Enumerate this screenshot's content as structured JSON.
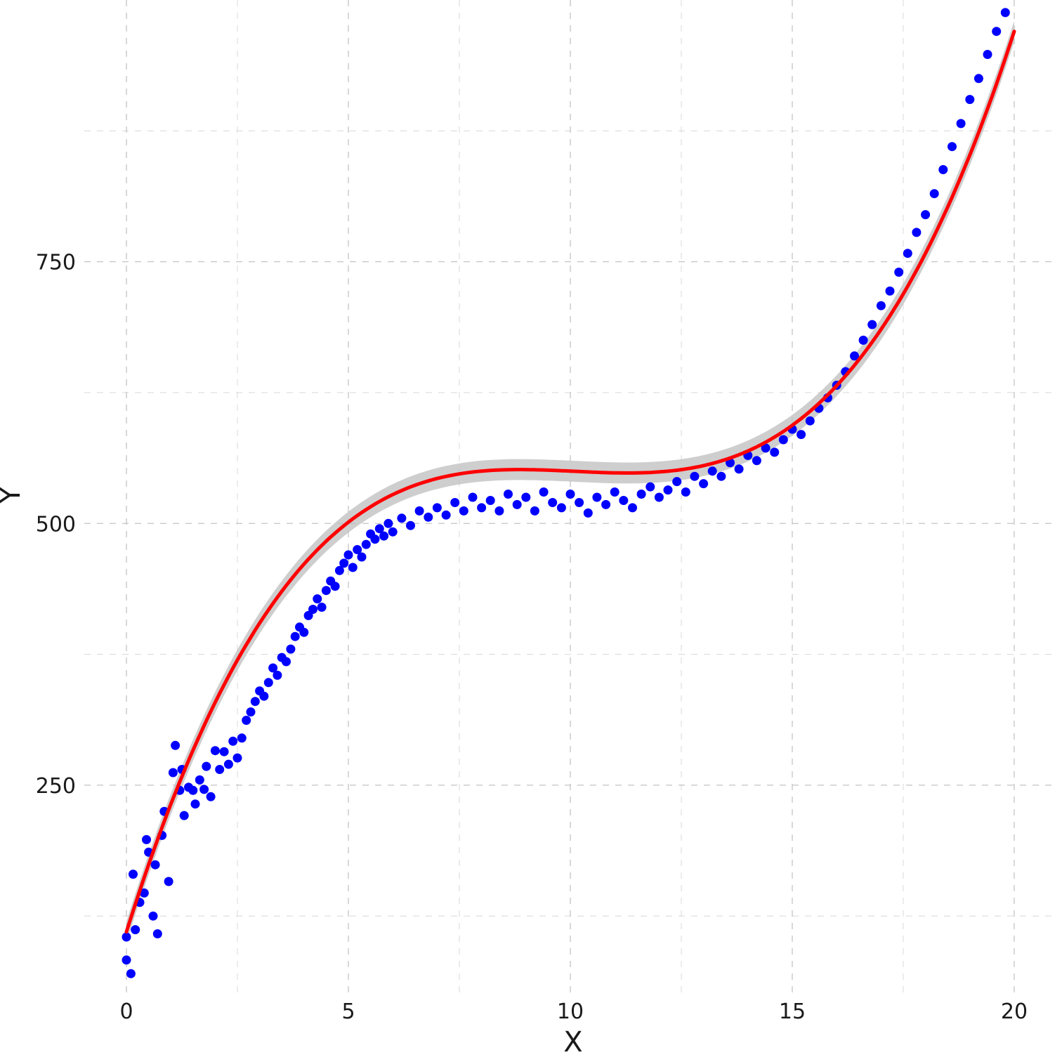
{
  "chart_data": {
    "type": "scatter",
    "title": "",
    "xlabel": "X",
    "ylabel": "Y",
    "xlim": [
      -0.95,
      20.95
    ],
    "ylim": [
      50,
      1000
    ],
    "x_ticks": [
      0,
      5,
      10,
      15,
      20
    ],
    "x_tick_labels": [
      "0",
      "5",
      "10",
      "15",
      "20"
    ],
    "y_ticks": [
      250,
      500,
      750
    ],
    "y_tick_labels": [
      "250",
      "500",
      "750"
    ],
    "x_minor": [
      2.5,
      7.5,
      12.5,
      17.5
    ],
    "y_minor": [
      125,
      375,
      625,
      875
    ],
    "grid": true,
    "legend": "none",
    "colors": {
      "points": "#0000ff",
      "fit_line": "#ff0000",
      "ribbon": "#bdbdbd"
    },
    "fit": {
      "type": "cubic",
      "description": "smoothed trend line with confidence band",
      "coefficients": [
        110,
        135,
        -13.6,
        0.45
      ],
      "band": 10
    },
    "series": [
      {
        "type": "scatter",
        "points": [
          [
            0.0,
            105
          ],
          [
            0.0,
            83
          ],
          [
            0.1,
            70
          ],
          [
            0.15,
            165
          ],
          [
            0.2,
            112
          ],
          [
            0.3,
            138
          ],
          [
            0.4,
            147
          ],
          [
            0.45,
            198
          ],
          [
            0.5,
            186
          ],
          [
            0.6,
            125
          ],
          [
            0.65,
            174
          ],
          [
            0.7,
            108
          ],
          [
            0.8,
            202
          ],
          [
            0.85,
            225
          ],
          [
            0.95,
            158
          ],
          [
            1.05,
            262
          ],
          [
            1.1,
            288
          ],
          [
            1.2,
            245
          ],
          [
            1.25,
            265
          ],
          [
            1.3,
            221
          ],
          [
            1.4,
            248
          ],
          [
            1.5,
            245
          ],
          [
            1.55,
            232
          ],
          [
            1.65,
            255
          ],
          [
            1.75,
            246
          ],
          [
            1.8,
            268
          ],
          [
            1.9,
            239
          ],
          [
            2.0,
            283
          ],
          [
            2.1,
            265
          ],
          [
            2.2,
            282
          ],
          [
            2.3,
            270
          ],
          [
            2.4,
            292
          ],
          [
            2.5,
            276
          ],
          [
            2.6,
            295
          ],
          [
            2.7,
            312
          ],
          [
            2.8,
            320
          ],
          [
            2.9,
            330
          ],
          [
            3.0,
            340
          ],
          [
            3.1,
            335
          ],
          [
            3.2,
            348
          ],
          [
            3.3,
            362
          ],
          [
            3.4,
            355
          ],
          [
            3.5,
            372
          ],
          [
            3.6,
            368
          ],
          [
            3.7,
            380
          ],
          [
            3.8,
            392
          ],
          [
            3.9,
            401
          ],
          [
            4.0,
            396
          ],
          [
            4.1,
            412
          ],
          [
            4.2,
            418
          ],
          [
            4.3,
            428
          ],
          [
            4.4,
            420
          ],
          [
            4.5,
            436
          ],
          [
            4.6,
            445
          ],
          [
            4.7,
            440
          ],
          [
            4.8,
            455
          ],
          [
            4.9,
            462
          ],
          [
            5.0,
            470
          ],
          [
            5.1,
            458
          ],
          [
            5.2,
            475
          ],
          [
            5.3,
            468
          ],
          [
            5.4,
            480
          ],
          [
            5.5,
            490
          ],
          [
            5.6,
            485
          ],
          [
            5.7,
            495
          ],
          [
            5.8,
            488
          ],
          [
            5.9,
            500
          ],
          [
            6.0,
            492
          ],
          [
            6.2,
            505
          ],
          [
            6.4,
            498
          ],
          [
            6.6,
            512
          ],
          [
            6.8,
            506
          ],
          [
            7.0,
            515
          ],
          [
            7.2,
            508
          ],
          [
            7.4,
            520
          ],
          [
            7.6,
            512
          ],
          [
            7.8,
            525
          ],
          [
            8.0,
            515
          ],
          [
            8.2,
            522
          ],
          [
            8.4,
            512
          ],
          [
            8.6,
            528
          ],
          [
            8.8,
            518
          ],
          [
            9.0,
            525
          ],
          [
            9.2,
            512
          ],
          [
            9.4,
            530
          ],
          [
            9.6,
            520
          ],
          [
            9.8,
            515
          ],
          [
            10.0,
            528
          ],
          [
            10.2,
            520
          ],
          [
            10.4,
            510
          ],
          [
            10.6,
            525
          ],
          [
            10.8,
            518
          ],
          [
            11.0,
            530
          ],
          [
            11.2,
            522
          ],
          [
            11.4,
            515
          ],
          [
            11.6,
            528
          ],
          [
            11.8,
            535
          ],
          [
            12.0,
            525
          ],
          [
            12.2,
            532
          ],
          [
            12.4,
            540
          ],
          [
            12.6,
            530
          ],
          [
            12.8,
            545
          ],
          [
            13.0,
            538
          ],
          [
            13.2,
            550
          ],
          [
            13.4,
            545
          ],
          [
            13.6,
            558
          ],
          [
            13.8,
            552
          ],
          [
            14.0,
            565
          ],
          [
            14.2,
            560
          ],
          [
            14.4,
            572
          ],
          [
            14.6,
            568
          ],
          [
            14.8,
            580
          ],
          [
            15.0,
            590
          ],
          [
            15.2,
            585
          ],
          [
            15.4,
            598
          ],
          [
            15.6,
            610
          ],
          [
            15.8,
            620
          ],
          [
            16.0,
            632
          ],
          [
            16.2,
            645
          ],
          [
            16.4,
            660
          ],
          [
            16.6,
            675
          ],
          [
            16.8,
            690
          ],
          [
            17.0,
            708
          ],
          [
            17.2,
            722
          ],
          [
            17.4,
            740
          ],
          [
            17.6,
            758
          ],
          [
            17.8,
            778
          ],
          [
            18.0,
            795
          ],
          [
            18.2,
            815
          ],
          [
            18.4,
            838
          ],
          [
            18.6,
            860
          ],
          [
            18.8,
            882
          ],
          [
            19.0,
            905
          ],
          [
            19.2,
            925
          ],
          [
            19.4,
            948
          ],
          [
            19.6,
            970
          ],
          [
            19.8,
            988
          ]
        ]
      }
    ]
  }
}
